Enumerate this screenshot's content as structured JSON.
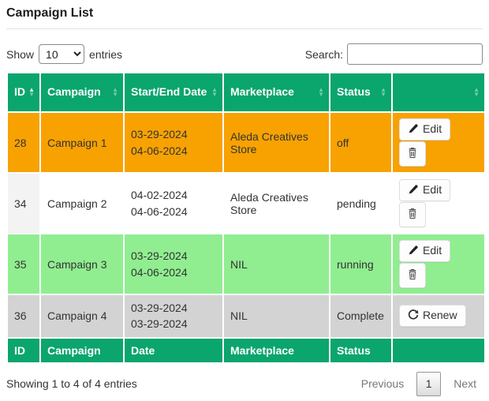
{
  "page": {
    "title": "Campaign List"
  },
  "controls": {
    "show_label": "Show",
    "page_length": "10",
    "entries_label": "entries",
    "search_label": "Search:",
    "search_value": ""
  },
  "colors": {
    "header_green": "#0ba56e",
    "row_orange": "#f8a201",
    "row_white": "#ffffff",
    "row_white_id_shade": "#f3f3f3",
    "row_lightgreen": "#90ee90",
    "row_gray": "#d3d3d3",
    "button_face": "#fdfdfd"
  },
  "table": {
    "headers": [
      {
        "label": "ID",
        "sort": "asc"
      },
      {
        "label": "Campaign",
        "sort": "none"
      },
      {
        "label": "Start/End Date",
        "sort": "none"
      },
      {
        "label": "Marketplace",
        "sort": "none"
      },
      {
        "label": "Status",
        "sort": "none"
      },
      {
        "label": "",
        "sort": "none"
      }
    ],
    "footers": [
      "ID",
      "Campaign",
      "Date",
      "Marketplace",
      "Status",
      ""
    ],
    "rows": [
      {
        "id": "28",
        "campaign": "Campaign 1",
        "dates": [
          "03-29-2024",
          "04-06-2024"
        ],
        "marketplace": "Aleda Creatives Store",
        "status": "off",
        "bg": "#f8a201",
        "id_bg": "#f8a201",
        "actions": [
          "edit",
          "delete"
        ]
      },
      {
        "id": "34",
        "campaign": "Campaign 2",
        "dates": [
          "04-02-2024",
          "04-06-2024"
        ],
        "marketplace": "Aleda Creatives Store",
        "status": "pending",
        "bg": "#ffffff",
        "id_bg": "#f3f3f3",
        "actions": [
          "edit",
          "delete"
        ]
      },
      {
        "id": "35",
        "campaign": "Campaign 3",
        "dates": [
          "03-29-2024",
          "04-06-2024"
        ],
        "marketplace": "NIL",
        "status": "running",
        "bg": "#90ee90",
        "id_bg": "#90ee90",
        "actions": [
          "edit",
          "delete"
        ]
      },
      {
        "id": "36",
        "campaign": "Campaign 4",
        "dates": [
          "03-29-2024",
          "03-29-2024"
        ],
        "marketplace": "NIL",
        "status": "Complete",
        "bg": "#d3d3d3",
        "id_bg": "#d3d3d3",
        "actions": [
          "renew"
        ]
      }
    ]
  },
  "buttons": {
    "edit_label": "Edit",
    "renew_label": "Renew",
    "edit_icon": "pencil-icon",
    "delete_icon": "trash-icon",
    "renew_icon": "refresh-icon"
  },
  "footer": {
    "info": "Showing 1 to 4 of 4 entries",
    "previous_label": "Previous",
    "current_page": "1",
    "next_label": "Next"
  }
}
